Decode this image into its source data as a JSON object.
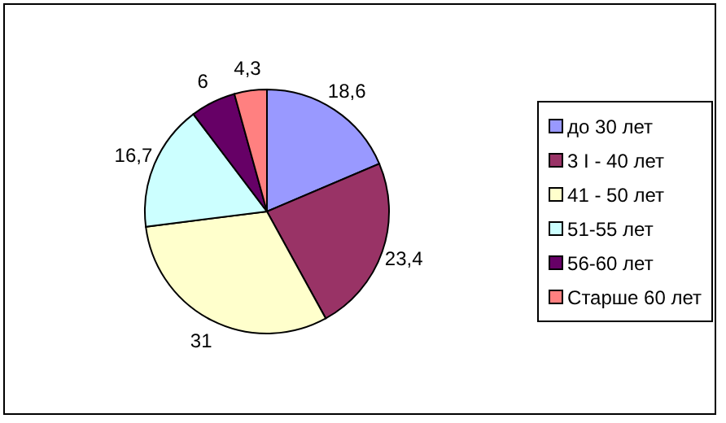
{
  "chart_data": {
    "type": "pie",
    "categories": [
      "до 30 лет",
      "3 I - 40 лет",
      "41 - 50 лет",
      "51-55 лет",
      "56-60 лет",
      "Старше 60 лет"
    ],
    "values": [
      18.6,
      23.4,
      31,
      16.7,
      6,
      4.3
    ],
    "value_labels": [
      "18,6",
      "23,4",
      "31",
      "16,7",
      "6",
      "4,3"
    ],
    "colors": [
      "#9999ff",
      "#993366",
      "#ffffcc",
      "#ccffff",
      "#660066",
      "#ff8080"
    ],
    "legend": "right"
  }
}
